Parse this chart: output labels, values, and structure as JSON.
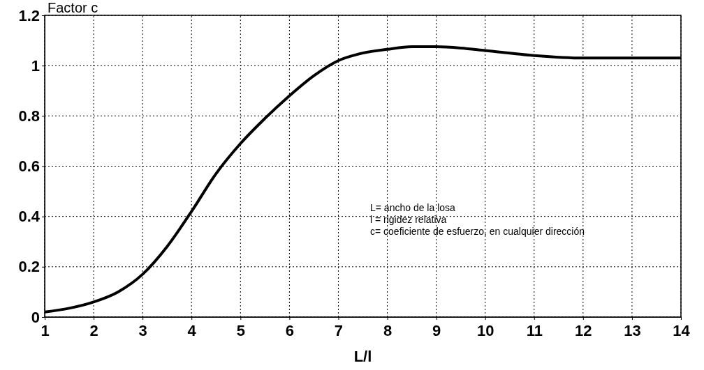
{
  "chart_data": {
    "type": "line",
    "ylabel": "Factor c",
    "xlabel": "L/l",
    "annotations": [
      "L= ancho de la losa",
      "l = rigidez relativa",
      "c= coeficiente de esfuerzo, en cualquier dirección"
    ],
    "series": [
      {
        "color": "#000000",
        "x": [
          1,
          1.5,
          2,
          2.5,
          3,
          3.5,
          4,
          4.5,
          5,
          5.5,
          6,
          6.5,
          7,
          7.5,
          8,
          8.5,
          9,
          9.5,
          10,
          11,
          12,
          13,
          14
        ],
        "values": [
          0.02,
          0.035,
          0.06,
          0.1,
          0.17,
          0.28,
          0.42,
          0.57,
          0.69,
          0.79,
          0.88,
          0.96,
          1.02,
          1.05,
          1.065,
          1.075,
          1.075,
          1.07,
          1.06,
          1.04,
          1.03,
          1.03,
          1.03
        ]
      }
    ],
    "xlim": [
      1,
      14
    ],
    "xticks": [
      1,
      2,
      3,
      4,
      5,
      6,
      7,
      8,
      9,
      10,
      11,
      12,
      13,
      14
    ],
    "ylim": [
      0,
      1.2
    ],
    "yticks": [
      0,
      0.2,
      0.4,
      0.6,
      0.8,
      {
        "value": 1,
        "label": "1"
      },
      1.2
    ],
    "grid": true,
    "line_style": "solid",
    "marker": "none"
  }
}
